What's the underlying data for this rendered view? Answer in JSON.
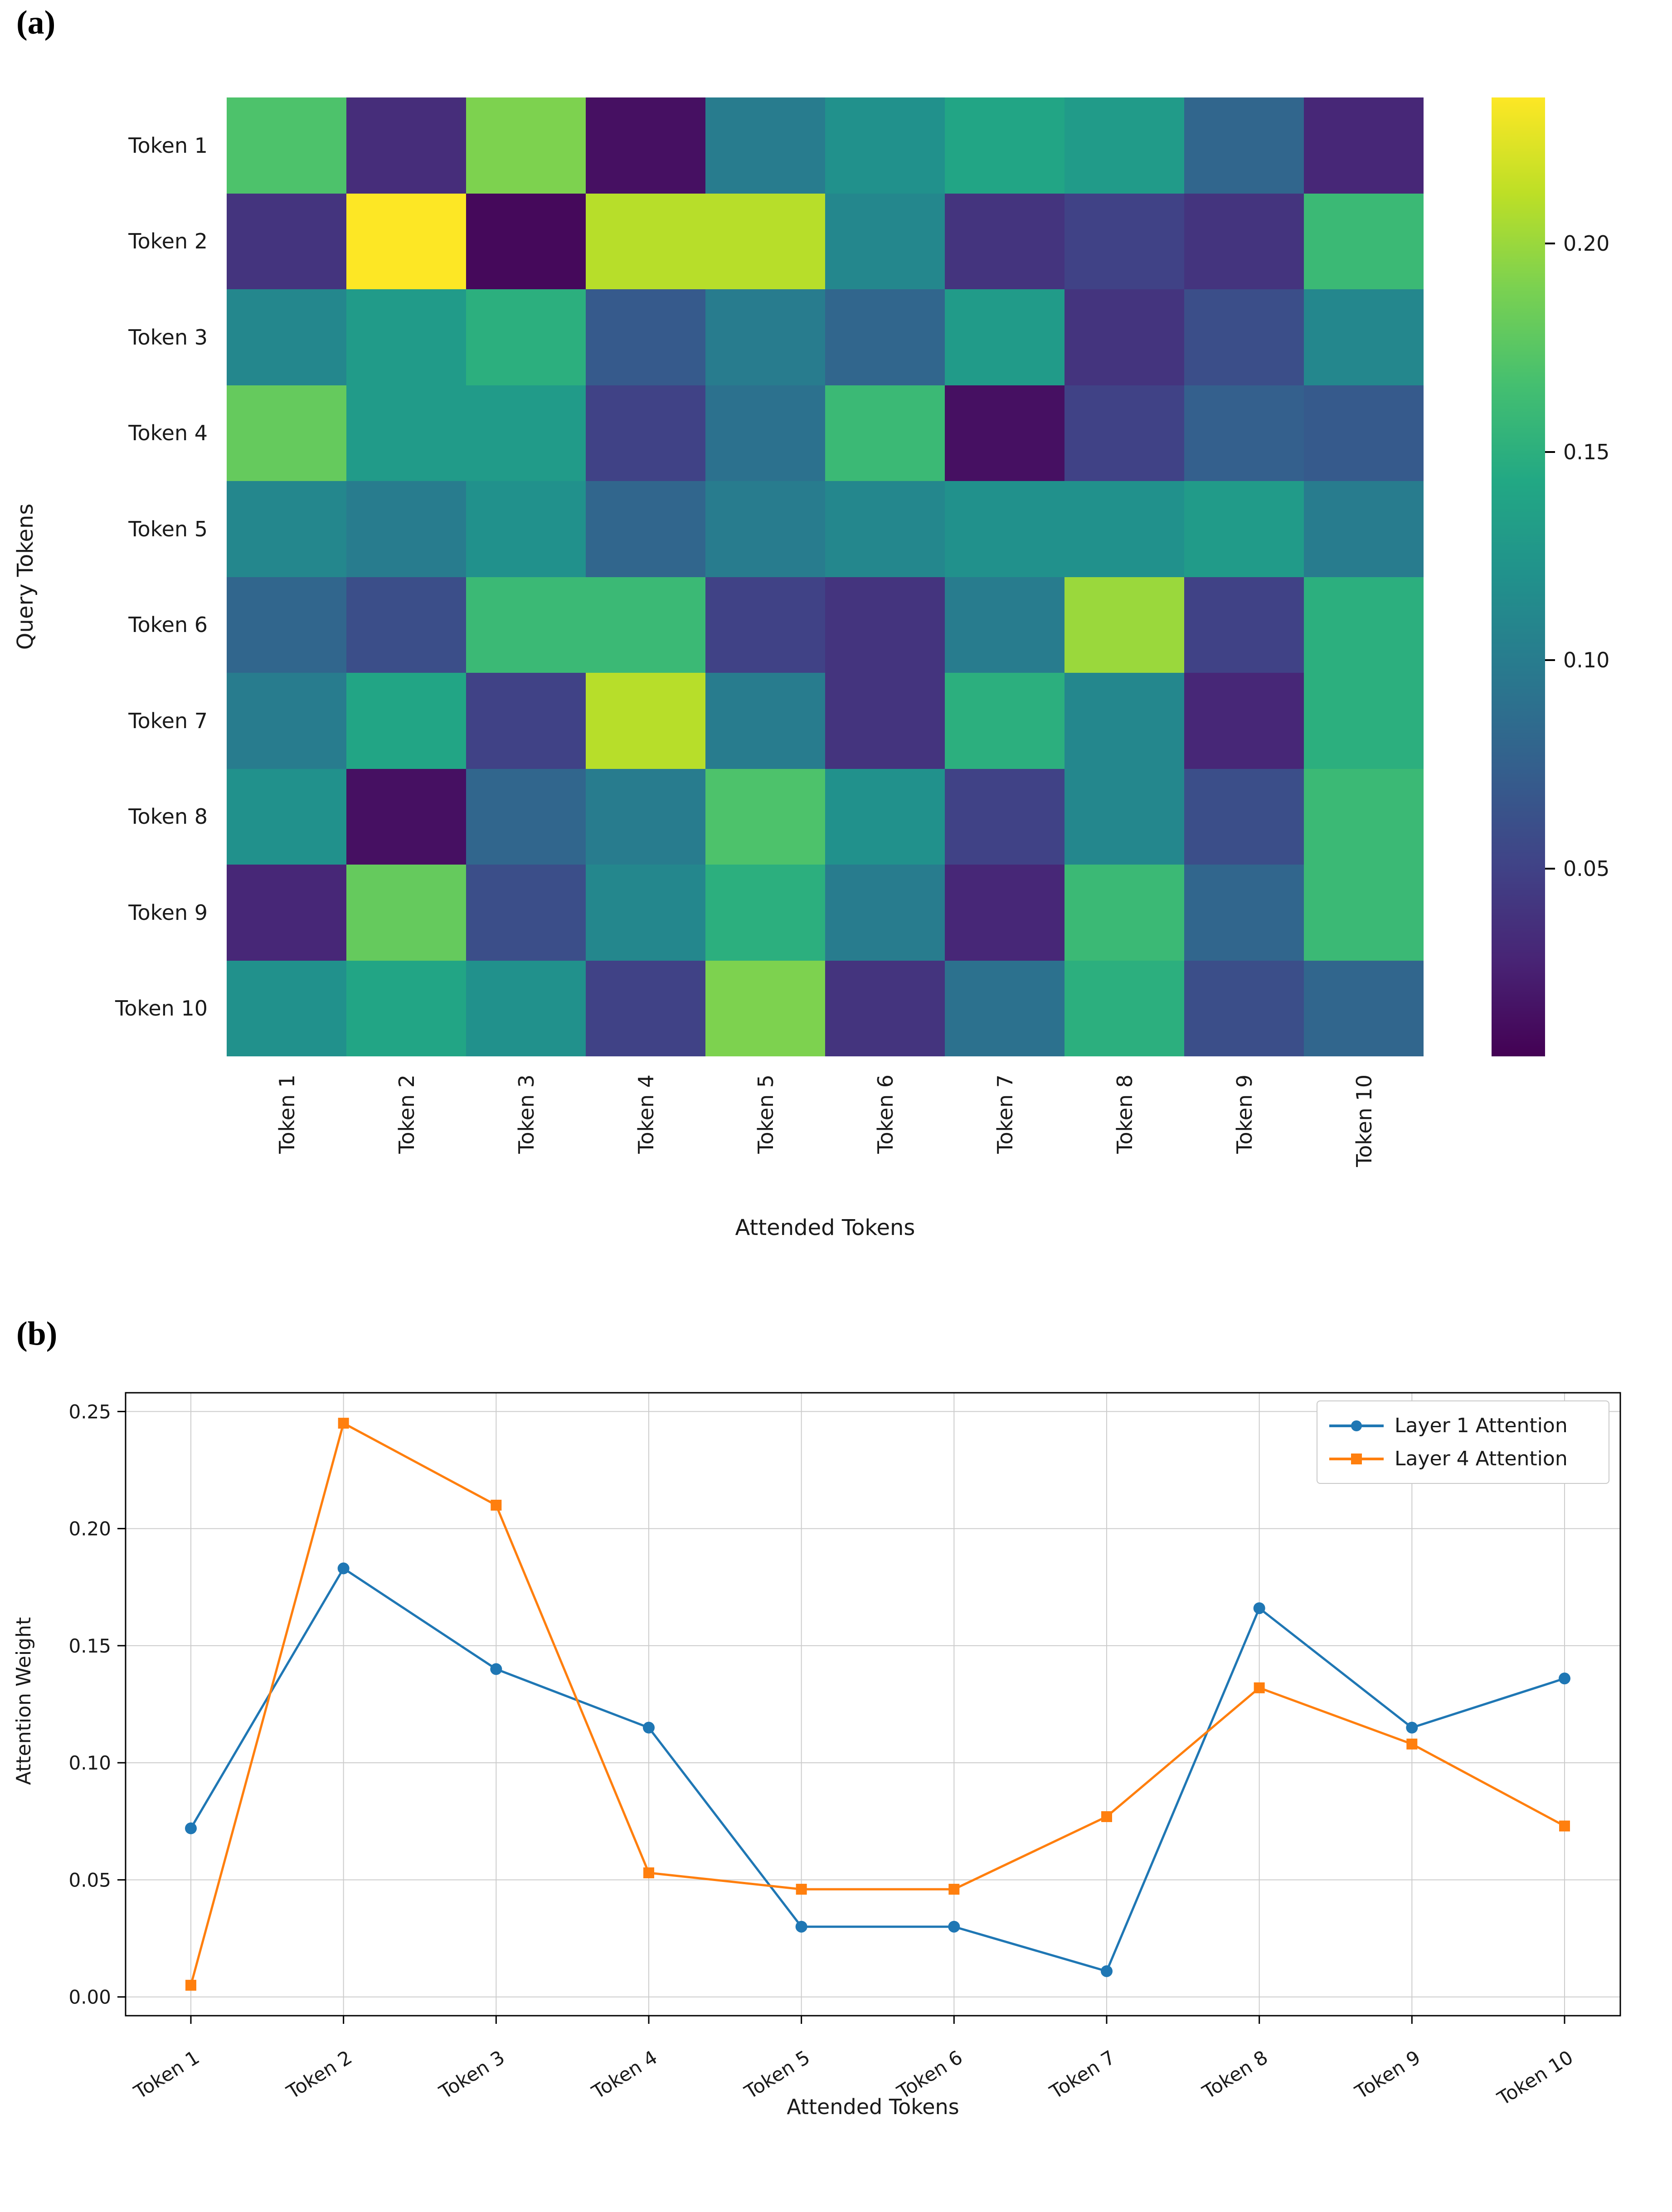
{
  "panel_labels": {
    "a": "(a)",
    "b": "(b)"
  },
  "chart_data": [
    {
      "type": "heatmap",
      "xlabel": "Attended Tokens",
      "ylabel": "Query Tokens",
      "x_labels": [
        "Token 1",
        "Token 2",
        "Token 3",
        "Token 4",
        "Token 5",
        "Token 6",
        "Token 7",
        "Token 8",
        "Token 9",
        "Token 10"
      ],
      "y_labels": [
        "Token 1",
        "Token 2",
        "Token 3",
        "Token 4",
        "Token 5",
        "Token 6",
        "Token 7",
        "Token 8",
        "Token 9",
        "Token 10"
      ],
      "values": [
        [
          0.17,
          0.035,
          0.19,
          0.015,
          0.1,
          0.12,
          0.14,
          0.13,
          0.08,
          0.03
        ],
        [
          0.04,
          0.235,
          0.01,
          0.21,
          0.21,
          0.11,
          0.04,
          0.05,
          0.04,
          0.16
        ],
        [
          0.11,
          0.13,
          0.15,
          0.07,
          0.1,
          0.08,
          0.13,
          0.04,
          0.06,
          0.11
        ],
        [
          0.18,
          0.13,
          0.13,
          0.05,
          0.09,
          0.16,
          0.015,
          0.05,
          0.075,
          0.07
        ],
        [
          0.11,
          0.1,
          0.12,
          0.08,
          0.1,
          0.11,
          0.12,
          0.12,
          0.13,
          0.1
        ],
        [
          0.08,
          0.06,
          0.16,
          0.16,
          0.05,
          0.04,
          0.1,
          0.2,
          0.05,
          0.15
        ],
        [
          0.1,
          0.14,
          0.05,
          0.21,
          0.1,
          0.04,
          0.15,
          0.11,
          0.03,
          0.15
        ],
        [
          0.12,
          0.015,
          0.08,
          0.1,
          0.17,
          0.12,
          0.05,
          0.11,
          0.06,
          0.16
        ],
        [
          0.03,
          0.18,
          0.06,
          0.11,
          0.15,
          0.1,
          0.03,
          0.16,
          0.08,
          0.16
        ],
        [
          0.12,
          0.14,
          0.12,
          0.05,
          0.19,
          0.04,
          0.09,
          0.15,
          0.06,
          0.08
        ]
      ],
      "vmin": 0.005,
      "vmax": 0.235,
      "colormap": "viridis",
      "colorbar_ticks": [
        0.05,
        0.1,
        0.15,
        0.2
      ]
    },
    {
      "type": "line",
      "xlabel": "Attended Tokens",
      "ylabel": "Attention Weight",
      "categories": [
        "Token 1",
        "Token 2",
        "Token 3",
        "Token 4",
        "Token 5",
        "Token 6",
        "Token 7",
        "Token 8",
        "Token 9",
        "Token 10"
      ],
      "series": [
        {
          "name": "Layer 1 Attention",
          "color": "#1f77b4",
          "marker": "circle",
          "values": [
            0.072,
            0.183,
            0.14,
            0.115,
            0.03,
            0.03,
            0.011,
            0.166,
            0.115,
            0.136
          ]
        },
        {
          "name": "Layer 4 Attention",
          "color": "#ff7f0e",
          "marker": "square",
          "values": [
            0.005,
            0.245,
            0.21,
            0.053,
            0.046,
            0.046,
            0.077,
            0.132,
            0.108,
            0.073
          ]
        }
      ],
      "ylim": [
        0.0,
        0.25
      ],
      "yticks": [
        0.0,
        0.05,
        0.1,
        0.15,
        0.2,
        0.25
      ],
      "grid": true,
      "legend_position": "upper right"
    }
  ]
}
